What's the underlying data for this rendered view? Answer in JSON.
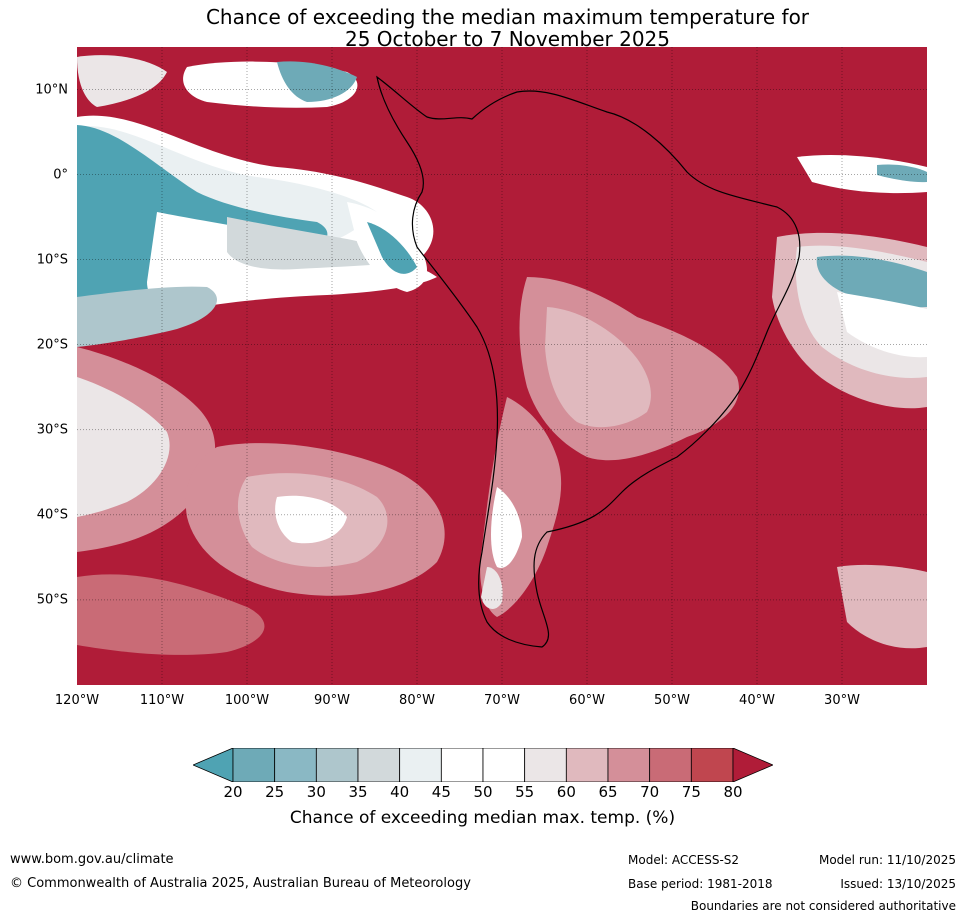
{
  "title": {
    "line1": "Chance of exceeding the median maximum temperature for",
    "line2": "25 October to 7 November 2025"
  },
  "axes": {
    "lat_labels": [
      "10°N",
      "0°",
      "10°S",
      "20°S",
      "30°S",
      "40°S",
      "50°S"
    ],
    "lat_values": [
      10,
      0,
      -10,
      -20,
      -30,
      -40,
      -50
    ],
    "lon_labels": [
      "120°W",
      "110°W",
      "100°W",
      "90°W",
      "80°W",
      "70°W",
      "60°W",
      "50°W",
      "40°W",
      "30°W"
    ],
    "lon_values": [
      -120,
      -110,
      -100,
      -90,
      -80,
      -70,
      -60,
      -50,
      -40,
      -30
    ],
    "lat_range": [
      -60,
      15
    ],
    "lon_range": [
      -120,
      -20
    ]
  },
  "colorbar": {
    "ticks": [
      "20",
      "25",
      "30",
      "35",
      "40",
      "45",
      "50",
      "55",
      "60",
      "65",
      "70",
      "75",
      "80"
    ],
    "colors": [
      "#4fa3b3",
      "#6eaab7",
      "#8ab8c4",
      "#aec6cc",
      "#d2d9db",
      "#eaf0f2",
      "#ffffff",
      "#ffffff",
      "#ebe6e7",
      "#e0b9be",
      "#d48f99",
      "#c96b76",
      "#c0464f",
      "#b01c38"
    ],
    "label": "Chance of exceeding median max. temp. (%)"
  },
  "footer": {
    "website": "www.bom.gov.au/climate",
    "copyright": "© Commonwealth of Australia 2025, Australian Bureau of Meteorology",
    "model": "Model: ACCESS-S2",
    "base_period": "Base period: 1981-2018",
    "model_run": "Model run: 11/10/2025",
    "issued": "Issued: 13/10/2025",
    "disclaimer": "Boundaries are not considered authoritative"
  }
}
